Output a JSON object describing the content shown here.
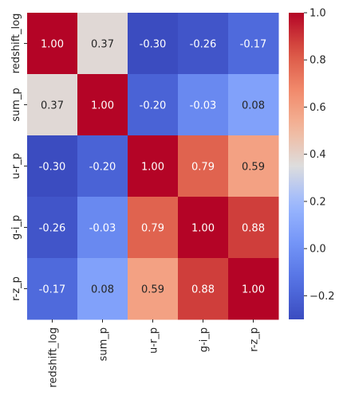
{
  "chart_data": {
    "type": "heatmap",
    "title": "",
    "xlabel": "",
    "ylabel": "",
    "row_labels": [
      "redshift_log",
      "sum_p",
      "u-r_p",
      "g-i_p",
      "r-z_p"
    ],
    "col_labels": [
      "redshift_log",
      "sum_p",
      "u-r_p",
      "g-i_p",
      "r-z_p"
    ],
    "values": [
      [
        1.0,
        0.37,
        -0.3,
        -0.26,
        -0.17
      ],
      [
        0.37,
        1.0,
        -0.2,
        -0.03,
        0.08
      ],
      [
        -0.3,
        -0.2,
        1.0,
        0.79,
        0.59
      ],
      [
        -0.26,
        -0.03,
        0.79,
        1.0,
        0.88
      ],
      [
        -0.17,
        0.08,
        0.59,
        0.88,
        1.0
      ]
    ],
    "value_format": "0.00",
    "colormap": "coolwarm",
    "vmin": -0.3,
    "vmax": 1.0,
    "colorbar": {
      "ticks": [
        -0.2,
        0.0,
        0.2,
        0.4,
        0.6,
        0.8,
        1.0
      ],
      "tick_labels": [
        "−0.2",
        "0.0",
        "0.2",
        "0.4",
        "0.6",
        "0.8",
        "1.0"
      ],
      "placement": "right"
    },
    "grid": false,
    "legend": "none"
  }
}
